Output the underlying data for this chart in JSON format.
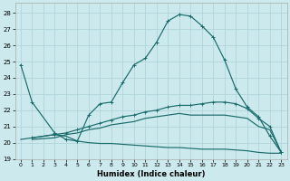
{
  "xlabel": "Humidex (Indice chaleur)",
  "bg_color": "#cce9ed",
  "grid_color": "#b0d5da",
  "line_color": "#1a6b6b",
  "xlim": [
    -0.5,
    23.5
  ],
  "ylim": [
    19,
    28.6
  ],
  "yticks": [
    19,
    20,
    21,
    22,
    23,
    24,
    25,
    26,
    27,
    28
  ],
  "xticks": [
    0,
    1,
    2,
    3,
    4,
    5,
    6,
    7,
    8,
    9,
    10,
    11,
    12,
    13,
    14,
    15,
    16,
    17,
    18,
    19,
    20,
    21,
    22,
    23
  ],
  "line1_x": [
    0,
    1,
    3,
    4,
    5,
    6,
    7,
    8,
    9,
    10,
    11,
    12,
    13,
    14,
    15,
    16,
    17,
    18,
    19,
    20,
    21,
    22,
    23
  ],
  "line1_y": [
    24.8,
    22.5,
    20.6,
    20.2,
    20.1,
    21.7,
    22.4,
    22.5,
    23.7,
    24.8,
    25.2,
    26.2,
    27.5,
    27.9,
    27.8,
    27.2,
    26.5,
    25.1,
    23.3,
    22.2,
    21.6,
    20.4,
    19.4
  ],
  "line2_x": [
    1,
    3,
    4,
    5,
    6,
    7,
    8,
    9,
    10,
    11,
    12,
    13,
    14,
    15,
    16,
    17,
    18,
    19,
    20,
    21,
    22,
    23
  ],
  "line2_y": [
    20.3,
    20.5,
    20.6,
    20.8,
    21.0,
    21.2,
    21.4,
    21.6,
    21.7,
    21.9,
    22.0,
    22.2,
    22.3,
    22.3,
    22.4,
    22.5,
    22.5,
    22.4,
    22.1,
    21.5,
    21.0,
    19.4
  ],
  "line3_x": [
    1,
    3,
    4,
    5,
    6,
    7,
    8,
    9,
    10,
    11,
    12,
    13,
    14,
    15,
    16,
    17,
    18,
    19,
    20,
    21,
    22,
    23
  ],
  "line3_y": [
    20.2,
    20.3,
    20.5,
    20.6,
    20.8,
    20.9,
    21.1,
    21.2,
    21.3,
    21.5,
    21.6,
    21.7,
    21.8,
    21.7,
    21.7,
    21.7,
    21.7,
    21.6,
    21.5,
    21.0,
    20.8,
    19.4
  ],
  "line4_x": [
    0,
    1,
    3,
    4,
    5,
    6,
    7,
    8,
    9,
    10,
    11,
    12,
    13,
    14,
    15,
    16,
    17,
    18,
    19,
    20,
    21,
    22,
    23
  ],
  "line4_y": [
    20.2,
    20.3,
    20.5,
    20.4,
    20.1,
    20.0,
    19.95,
    19.95,
    19.9,
    19.85,
    19.8,
    19.75,
    19.7,
    19.7,
    19.65,
    19.6,
    19.6,
    19.6,
    19.55,
    19.5,
    19.4,
    19.35,
    19.35
  ]
}
